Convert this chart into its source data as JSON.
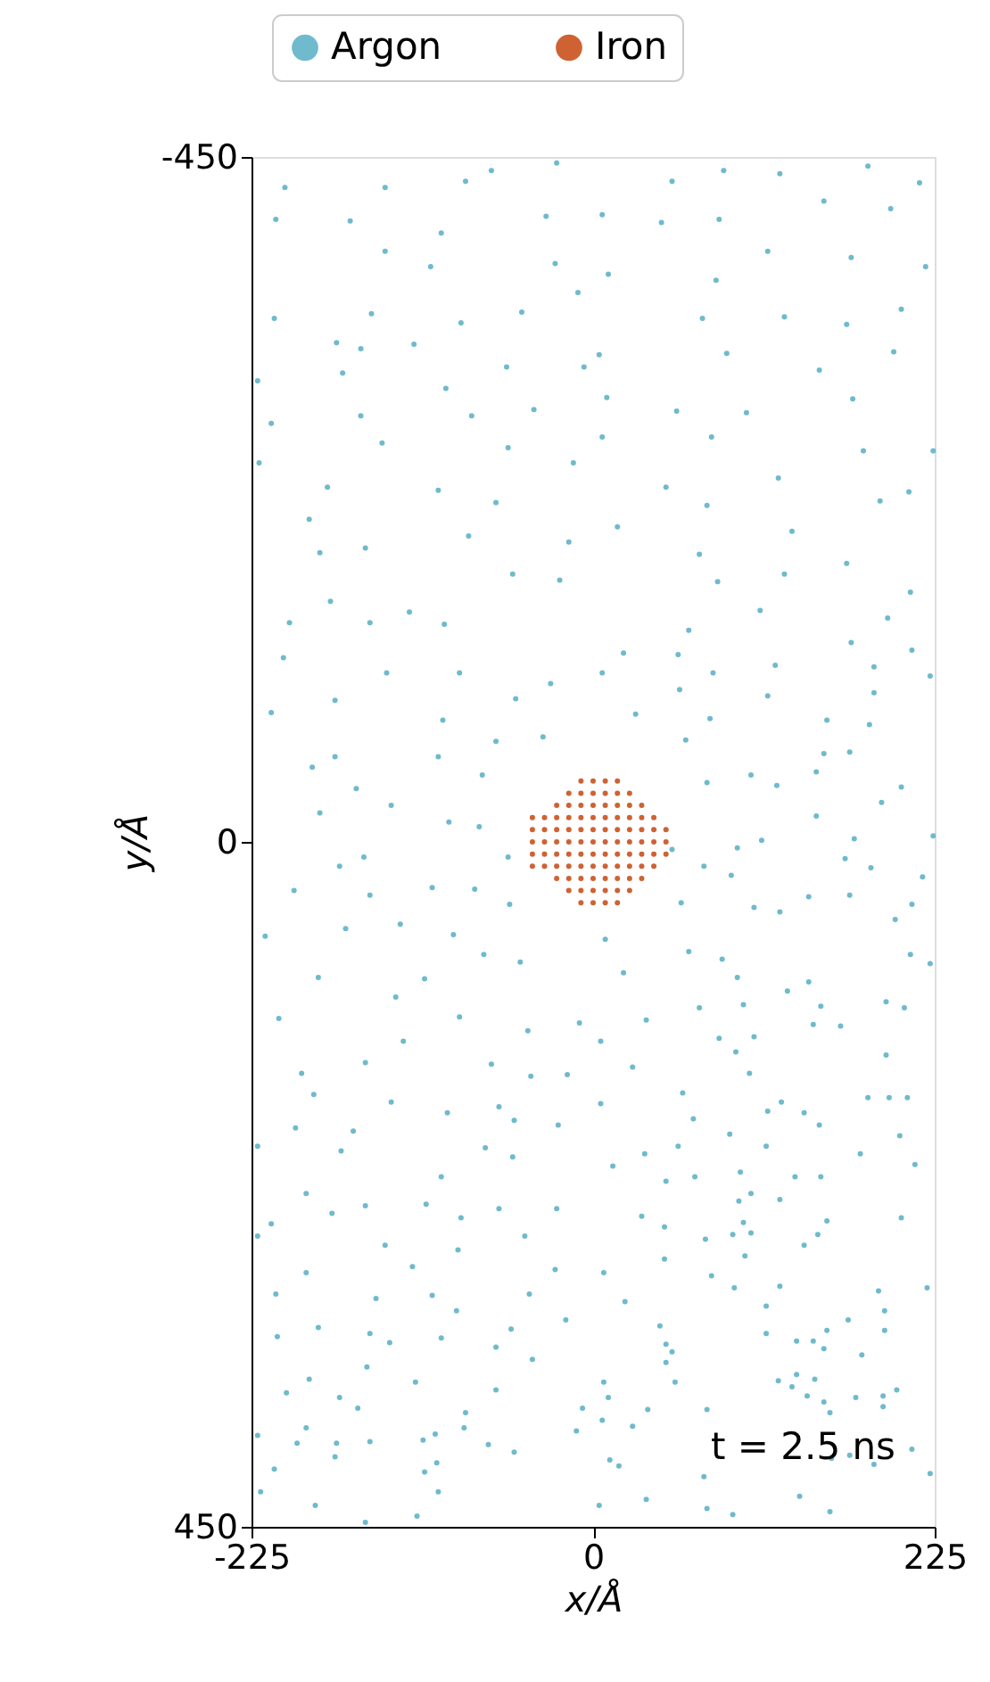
{
  "chart_data": {
    "type": "scatter",
    "xlabel": "x/Å",
    "ylabel": "y/Å",
    "xlim": [
      -225,
      225
    ],
    "ylim": [
      450,
      -450
    ],
    "xticks": [
      -225,
      0,
      225
    ],
    "yticks": [
      -450,
      0,
      450
    ],
    "grid": false,
    "legend": "top",
    "marker": "circle",
    "annotations": [
      "t = 2.5 ns"
    ],
    "series": [
      {
        "name": "Argon",
        "color": "#6fbacd",
        "x": [
          -203,
          -137,
          -84,
          -67,
          -24,
          -209,
          -160,
          -100,
          -31,
          -137,
          -107,
          -25,
          -10,
          -210,
          -146,
          -87,
          -47,
          -169,
          -153,
          -118,
          -57,
          -221,
          -165,
          -97,
          -6,
          -212,
          -153,
          -80,
          -39,
          -220,
          -139,
          -56,
          -13,
          -175,
          -187,
          -102,
          -64,
          -180,
          -150,
          -82,
          -16,
          -173,
          -121,
          -53,
          -22,
          52,
          86,
          123,
          181,
          215,
          6,
          45,
          83,
          152,
          196,
          115,
          170,
          10,
          81,
          219,
          72,
          126,
          167,
          203,
          4,
          88,
          149,
          198,
          9,
          55,
          101,
          171,
          6,
          78,
          178,
          224,
          48,
          122,
          189,
          16,
          75,
          131,
          208,
          70,
          126,
          167,
          82,
          209,
          110,
          -200,
          -147,
          -98,
          -204,
          -136,
          -88,
          -212,
          -170,
          -99,
          -51,
          -28,
          -170,
          -102,
          -64,
          -33,
          -185,
          -156,
          -73,
          -133,
          -180,
          -95,
          -75,
          -151,
          -167,
          -56,
          -197,
          -147,
          -106,
          -78,
          -216,
          -163,
          -127,
          -92,
          -55,
          -72,
          -48,
          -181,
          -111,
          -130,
          -207,
          -88,
          -43,
          -9,
          -125,
          -150,
          -67,
          194,
          63,
          20,
          56,
          170,
          210,
          6,
          79,
          120,
          185,
          222,
          57,
          115,
          185,
          28,
          77,
          154,
          182,
          61,
          152,
          169,
          75,
          104,
          121,
          203,
          147,
          190,
          147,
          172,
          224,
          52,
          95,
          111,
          73,
          91,
          166,
          183,
          217,
          58,
          106,
          123,
          142,
          169,
          210,
          8,
          63,
          85,
          199,
          209,
          222,
          20,
          95,
          128,
          142,
          35,
          70,
          99,
          150,
          193,
          205,
          5,
          83,
          106,
          145,
          163,
          94,
          193,
          26,
          -192,
          -41,
          -17,
          -184,
          -133,
          -96,
          -62,
          -52,
          -196,
          -158,
          -23,
          -221,
          -166,
          -71,
          -53,
          -100,
          -189,
          -150,
          -110,
          -62,
          -24,
          -212,
          -172,
          -87,
          -45,
          -221,
          -137,
          -89,
          -189,
          -119,
          -25,
          -209,
          -143,
          -106,
          -42,
          -181,
          -147,
          -90,
          -54,
          -18,
          -208,
          -134,
          -100,
          -64,
          -40,
          -149,
          -187,
          -117,
          -64,
          -202,
          -167,
          -84,
          -7,
          -221,
          -189,
          -155,
          -112,
          -85,
          -69,
          -195,
          -169,
          -147,
          -104,
          -52,
          -11,
          -210,
          -170,
          -111,
          -103,
          -219,
          -183,
          -150,
          -116,
          -102,
          103,
          59,
          5,
          66,
          115,
          124,
          139,
          181,
          195,
          207,
          90,
          149,
          202,
          34,
          56,
          114,
          176,
          13,
          48,
          67,
          97,
          133,
          150,
          212,
          104,
          123,
          32,
          47,
          96,
          99,
          104,
          92,
          154,
          203,
          74,
          139,
          148,
          47,
          100,
          7,
          78,
          123,
          93,
          21,
          114,
          188,
          220,
          44,
          114,
          168,
          192,
          48,
          52,
          134,
          145,
          152,
          154,
          192,
          177,
          48,
          7,
          54,
          122,
          134,
          146,
          10,
          131,
          141,
          173,
          191,
          200,
          6,
          36,
          26,
          75,
          152,
          156,
          191,
          11,
          17,
          73,
          157,
          169,
          185,
          210,
          222,
          4,
          35,
          75,
          92,
          136,
          156
        ],
        "values": [
          -430,
          -430,
          -434,
          -441,
          -446,
          -409,
          -408,
          -400,
          -411,
          -388,
          -378,
          -380,
          -361,
          -344,
          -347,
          -341,
          -348,
          -328,
          -324,
          -327,
          -312,
          -303,
          -308,
          -298,
          -312,
          -275,
          -280,
          -280,
          -284,
          -249,
          -262,
          -259,
          -249,
          -233,
          -212,
          -231,
          -223,
          -190,
          -193,
          -201,
          -197,
          -158,
          -151,
          -176,
          -172,
          -434,
          -441,
          -439,
          -444,
          -433,
          -412,
          -407,
          -409,
          -421,
          -416,
          -388,
          -384,
          -373,
          -369,
          -378,
          -344,
          -345,
          -340,
          -350,
          -320,
          -321,
          -310,
          -322,
          -292,
          -283,
          -282,
          -291,
          -266,
          -266,
          -257,
          -257,
          -233,
          -239,
          -224,
          -207,
          -221,
          -204,
          -230,
          -189,
          -176,
          -183,
          -171,
          -164,
          -152,
          -144,
          -144,
          -143,
          -121,
          -111,
          -111,
          -85,
          -93,
          -80,
          -94,
          -104,
          -56,
          -56,
          -66,
          -69,
          -49,
          -35,
          -44,
          -24,
          -19,
          -13,
          -10,
          10,
          16,
          10,
          32,
          35,
          30,
          31,
          62,
          57,
          54,
          61,
          41,
          74,
          79,
          89,
          90,
          102,
          116,
          115,
          124,
          119,
          131,
          145,
          146,
          -147,
          -139,
          -124,
          -123,
          -131,
          -126,
          -111,
          -111,
          -116,
          -115,
          -109,
          -100,
          -96,
          -98,
          -84,
          -81,
          -80,
          -77,
          -67,
          -58,
          -59,
          -39,
          -44,
          -37,
          -36,
          -46,
          -26,
          -17,
          -2,
          -4,
          5,
          4,
          -1,
          16,
          22,
          11,
          17,
          23,
          40,
          43,
          46,
          36,
          35,
          41,
          64,
          72,
          77,
          51,
          74,
          80,
          86,
          89,
          98,
          92,
          117,
          109,
          107,
          108,
          105,
          109,
          131,
          129,
          128,
          120,
          121,
          138,
          140,
          148,
          152,
          154,
          153,
          166,
          171,
          178,
          174,
          183,
          188,
          190,
          186,
          200,
          203,
          201,
          207,
          220,
          231,
          239,
          238,
          241,
          241,
          251,
          244,
          247,
          259,
          259,
          265,
          268,
          283,
          279,
          281,
          297,
          300,
          298,
          297,
          319,
          323,
          308,
          320,
          314,
          325,
          329,
          326,
          332,
          340,
          345,
          353,
          355,
          360,
          362,
          365,
          375,
          372,
          390,
          385,
          372,
          393,
          385,
          396,
          395,
          395,
          394,
          389,
          401,
          387,
          412,
          404,
          414,
          408,
          427,
          436,
          447,
          443,
          427,
          152,
          165,
          172,
          182,
          177,
          171,
          178,
          168,
          168,
          168,
          192,
          186,
          193,
          205,
          200,
          200,
          205,
          213,
          223,
          220,
          217,
          220,
          220,
          212,
          231,
          235,
          246,
          253,
          236,
          250,
          257,
          258,
          249,
          247,
          261,
          265,
          258,
          274,
          272,
          283,
          285,
          292,
          293,
          302,
          305,
          295,
          293,
          318,
          323,
          314,
          308,
          330,
          335,
          328,
          328,
          333,
          321,
          321,
          337,
          342,
          355,
          355,
          354,
          350,
          353,
          365,
          358,
          364,
          365,
          364,
          360,
          380,
          373,
          384,
          373,
          368,
          375,
          371,
          406,
          410,
          417,
          405,
          403,
          409,
          399,
          415,
          436,
          432,
          438,
          442,
          430,
          440
        ]
      },
      {
        "name": "Iron",
        "color": "#cf6233",
        "x": [
          -8,
          0,
          8,
          16,
          -16,
          -8,
          0,
          8,
          16,
          24,
          -24,
          -16,
          -8,
          0,
          8,
          16,
          24,
          32,
          -40,
          -32,
          -24,
          -16,
          -8,
          0,
          8,
          16,
          24,
          32,
          40,
          -40,
          -32,
          -24,
          -16,
          -8,
          0,
          8,
          16,
          24,
          32,
          40,
          48,
          -40,
          -32,
          -24,
          -16,
          -8,
          0,
          8,
          16,
          24,
          32,
          40,
          48,
          -40,
          -32,
          -24,
          -16,
          -8,
          0,
          8,
          16,
          24,
          32,
          40,
          48,
          -40,
          -32,
          -24,
          -16,
          -8,
          0,
          8,
          16,
          24,
          32,
          40,
          -24,
          -16,
          -8,
          0,
          8,
          16,
          24,
          32,
          -16,
          -8,
          0,
          8,
          16,
          24,
          -8,
          0,
          8,
          16
        ],
        "values": [
          -40,
          -40,
          -40,
          -40,
          -32,
          -32,
          -32,
          -32,
          -32,
          -32,
          -24,
          -24,
          -24,
          -24,
          -24,
          -24,
          -24,
          -24,
          -16,
          -16,
          -16,
          -16,
          -16,
          -16,
          -16,
          -16,
          -16,
          -16,
          -16,
          -8,
          -8,
          -8,
          -8,
          -8,
          -8,
          -8,
          -8,
          -8,
          -8,
          -8,
          -8,
          0,
          0,
          0,
          0,
          0,
          0,
          0,
          0,
          0,
          0,
          0,
          0,
          8,
          8,
          8,
          8,
          8,
          8,
          8,
          8,
          8,
          8,
          8,
          8,
          16,
          16,
          16,
          16,
          16,
          16,
          16,
          16,
          16,
          16,
          16,
          24,
          24,
          24,
          24,
          24,
          24,
          24,
          24,
          32,
          32,
          32,
          32,
          32,
          32,
          40,
          40,
          40,
          40
        ]
      }
    ]
  }
}
